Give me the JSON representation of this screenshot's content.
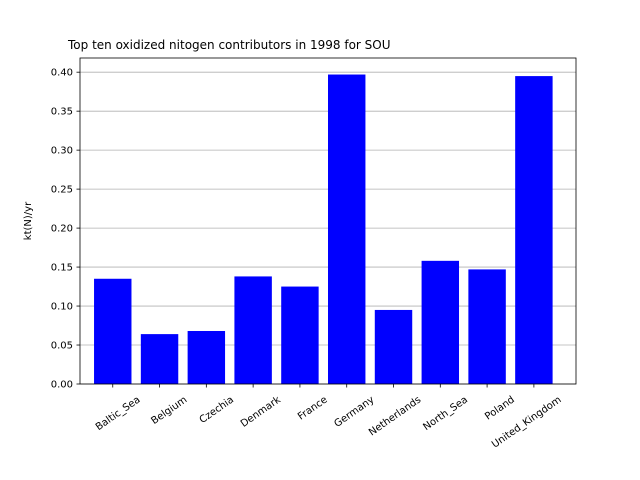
{
  "chart_data": {
    "type": "bar",
    "title": "Top ten oxidized nitogen contributors in 1998 for  SOU",
    "xlabel": "",
    "ylabel": "kt(N)/yr",
    "categories": [
      "Baltic_Sea",
      "Belgium",
      "Czechia",
      "Denmark",
      "France",
      "Germany",
      "Netherlands",
      "North_Sea",
      "Poland",
      "United_Kingdom"
    ],
    "values": [
      0.135,
      0.064,
      0.068,
      0.138,
      0.125,
      0.397,
      0.095,
      0.158,
      0.147,
      0.395
    ],
    "ylim": [
      0,
      0.4182
    ],
    "yticks": [
      0.0,
      0.05,
      0.1,
      0.15,
      0.2,
      0.25,
      0.3,
      0.35,
      0.4
    ],
    "ytick_labels": [
      "0.00",
      "0.05",
      "0.10",
      "0.15",
      "0.20",
      "0.25",
      "0.30",
      "0.35",
      "0.40"
    ],
    "grid": "y",
    "bar_color": "#0000ff",
    "grid_color": "#b0b0b0"
  }
}
